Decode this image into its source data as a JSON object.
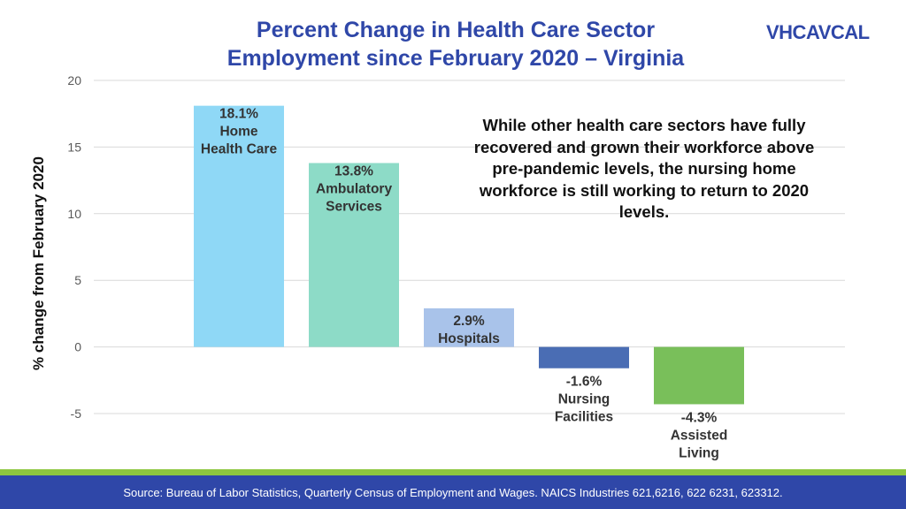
{
  "header": {
    "title_line1": "Percent Change in Health Care Sector",
    "title_line2": "Employment since February 2020 – Virginia"
  },
  "logo": {
    "part1": "VHCA",
    "part2": "VCAL"
  },
  "chart_data": {
    "type": "bar",
    "title": "Percent Change in Health Care Sector Employment since February 2020 – Virginia",
    "xlabel": "",
    "ylabel": "% change from February 2020",
    "ylim": [
      -5,
      20
    ],
    "yticks": [
      -5,
      0,
      5,
      10,
      15,
      20
    ],
    "grid": true,
    "categories": [
      "Home Health Care",
      "Ambulatory Services",
      "Hospitals",
      "Nursing Facilities",
      "Assisted Living"
    ],
    "values": [
      18.1,
      13.8,
      2.9,
      -1.6,
      -4.3
    ],
    "colors": [
      "#8fd8f6",
      "#8ddbc7",
      "#a9c3ea",
      "#4a6db4",
      "#79bf5a"
    ],
    "labels": [
      [
        "18.1%",
        "Home",
        "Health Care"
      ],
      [
        "13.8%",
        "Ambulatory",
        "Services"
      ],
      [
        "2.9%",
        "Hospitals"
      ],
      [
        "-1.6%",
        "Nursing",
        "Facilities"
      ],
      [
        "-4.3%",
        "Assisted",
        "Living"
      ]
    ]
  },
  "annotation": "While other health care sectors have fully recovered and grown their workforce above pre-pandemic levels, the nursing home workforce is still working to return to 2020 levels.",
  "footer": {
    "source": "Source: Bureau of Labor Statistics, Quarterly Census of Employment and Wages. NAICS Industries 621,6216, 622 6231, 623312."
  }
}
